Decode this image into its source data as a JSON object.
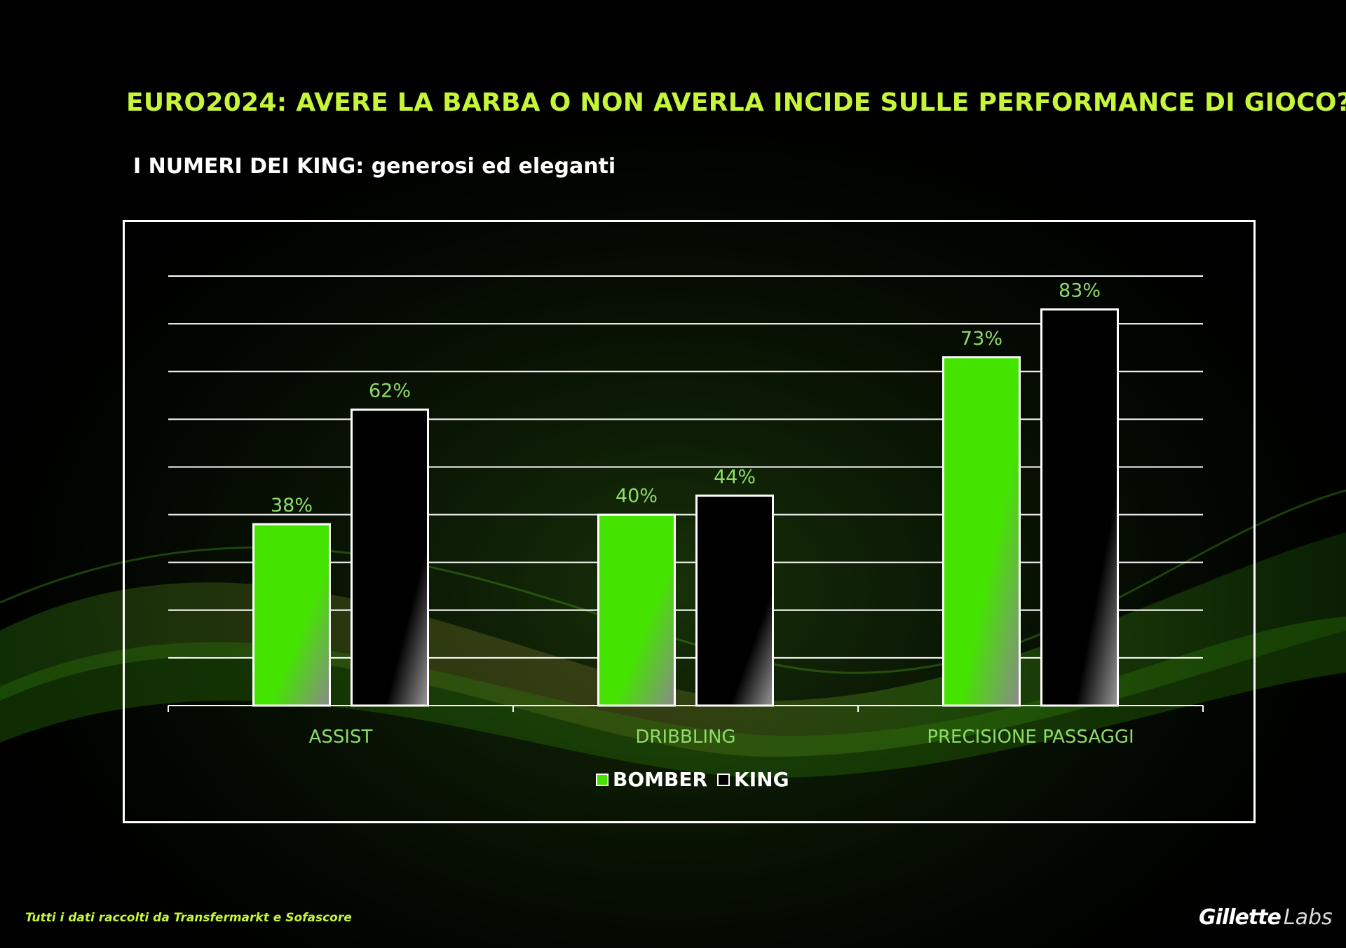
{
  "title": "EURO2024: AVERE LA BARBA O NON AVERLA INCIDE SULLE PERFORMANCE DI GIOCO?",
  "subtitle": "I NUMERI DEI KING: generosi ed eleganti",
  "footer": "Tutti i dati raccolti da Transfermarkt e Sofascore",
  "logo": {
    "brand": "Gillette",
    "suffix": "Labs"
  },
  "colors": {
    "accent": "#c6f53a",
    "bomber": "#44e400",
    "king": "#000000",
    "background": "#000000"
  },
  "chart_data": {
    "type": "bar",
    "categories": [
      "ASSIST",
      "DRIBBLING",
      "PRECISIONE PASSAGGI"
    ],
    "series": [
      {
        "name": "BOMBER",
        "values": [
          38,
          40,
          73
        ],
        "labels": [
          "38%",
          "40%",
          "73%"
        ]
      },
      {
        "name": "KING",
        "values": [
          62,
          44,
          83
        ],
        "labels": [
          "62%",
          "44%",
          "83%"
        ]
      }
    ],
    "ylim": [
      0,
      90
    ],
    "grid": true,
    "legend": "bottom-center"
  }
}
